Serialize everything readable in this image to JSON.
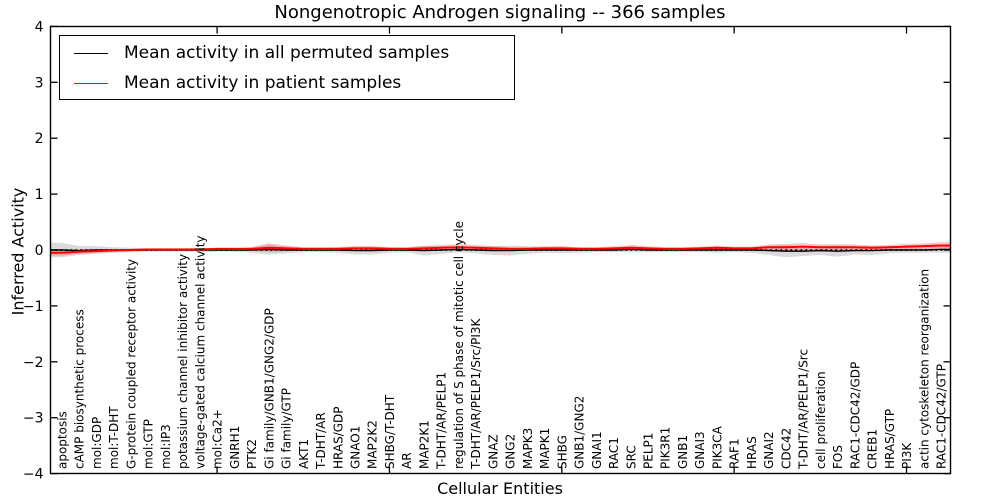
{
  "figure": {
    "background": "#ffffff",
    "frame_color": "#000000"
  },
  "chart_data": {
    "type": "line",
    "title": "Nongenotropic Androgen signaling -- 366 samples",
    "xlabel": "Cellular Entities",
    "ylabel": "Inferred Activity",
    "ylim": [
      -4,
      4
    ],
    "ytick_values": [
      4,
      3,
      2,
      1,
      0,
      -1,
      -2,
      -3,
      -4
    ],
    "ytick_labels": [
      "4",
      "3",
      "2",
      "1",
      "0",
      "−1",
      "−2",
      "−3",
      "−4"
    ],
    "xtick_values": [
      10,
      20,
      30,
      40,
      50
    ],
    "grid": false,
    "zero_line": {
      "value": 0,
      "style": "dotted",
      "color": "#000000"
    },
    "legend": {
      "position": "upper left",
      "entries": [
        {
          "label": "Mean activity in all permuted samples",
          "color": "#000000"
        },
        {
          "label": "Mean activity in patient samples",
          "color": "#ff0000"
        }
      ]
    },
    "categories": [
      "apoptosis",
      "cAMP biosynthetic process",
      "mol:GDP",
      "mol:T-DHT",
      "G-protein coupled receptor activity",
      "mol:GTP",
      "mol:IP3",
      "potassium channel inhibitor activity",
      "voltage-gated calcium channel activity",
      "mol:Ca2+",
      "GNRH1",
      "PTK2",
      "Gi family/GNB1/GNG2/GDP",
      "Gi family/GTP",
      "AKT1",
      "T-DHT/AR",
      "HRAS/GDP",
      "GNAO1",
      "MAP2K2",
      "SHBG/T-DHT",
      "AR",
      "MAP2K1",
      "T-DHT/AR/PELP1",
      "regulation of S phase of mitotic cell cycle",
      "T-DHT/AR/PELP1/Src/PI3K",
      "GNAZ",
      "GNG2",
      "MAPK3",
      "MAPK1",
      "SHBG",
      "GNB1/GNG2",
      "GNAI1",
      "RAC1",
      "SRC",
      "PELP1",
      "PIK3R1",
      "GNB1",
      "GNAI3",
      "PIK3CA",
      "RAF1",
      "HRAS",
      "GNAI2",
      "CDC42",
      "T-DHT/AR/PELP1/Src",
      "cell proliferation",
      "FOS",
      "RAC1-CDC42/GDP",
      "CREB1",
      "HRAS/GTP",
      "PI3K",
      "actin cytoskeleton reorganization",
      "RAC1-CDC42/GTP"
    ],
    "series": [
      {
        "name": "Mean activity in all permuted samples",
        "color": "#000000",
        "band_color": "#999999",
        "band_opacity": 0.35,
        "values": [
          0.0,
          -0.01,
          0.0,
          0.0,
          0.0,
          0.0,
          0.0,
          0.0,
          0.0,
          0.0,
          0.0,
          0.0,
          0.01,
          0.0,
          0.0,
          0.0,
          0.0,
          -0.01,
          -0.01,
          0.0,
          0.0,
          -0.01,
          0.0,
          0.01,
          0.0,
          -0.01,
          -0.01,
          0.0,
          0.0,
          0.0,
          0.0,
          0.0,
          0.0,
          0.01,
          0.0,
          0.0,
          0.0,
          0.0,
          0.0,
          0.0,
          0.0,
          -0.01,
          -0.02,
          -0.02,
          -0.01,
          -0.02,
          -0.01,
          -0.01,
          0.0,
          0.0,
          0.0,
          0.01
        ],
        "band_halfwidth": [
          0.13,
          0.08,
          0.07,
          0.05,
          0.04,
          0.03,
          0.03,
          0.03,
          0.04,
          0.03,
          0.03,
          0.05,
          0.09,
          0.06,
          0.04,
          0.04,
          0.05,
          0.07,
          0.07,
          0.05,
          0.04,
          0.09,
          0.07,
          0.05,
          0.06,
          0.08,
          0.09,
          0.07,
          0.05,
          0.06,
          0.05,
          0.04,
          0.04,
          0.05,
          0.04,
          0.04,
          0.04,
          0.04,
          0.05,
          0.04,
          0.05,
          0.08,
          0.11,
          0.09,
          0.08,
          0.1,
          0.07,
          0.08,
          0.06,
          0.05,
          0.05,
          0.06
        ]
      },
      {
        "name": "Mean activity in patient samples",
        "color": "#ff0000",
        "band_color": "#ff0000",
        "band_opacity": 0.22,
        "values": [
          -0.05,
          -0.03,
          -0.02,
          -0.01,
          0.0,
          0.01,
          0.01,
          0.01,
          0.01,
          0.02,
          0.02,
          0.02,
          0.04,
          0.03,
          0.02,
          0.02,
          0.02,
          0.03,
          0.03,
          0.02,
          0.02,
          0.03,
          0.04,
          0.05,
          0.04,
          0.03,
          0.02,
          0.02,
          0.03,
          0.03,
          0.02,
          0.02,
          0.03,
          0.04,
          0.03,
          0.02,
          0.02,
          0.03,
          0.04,
          0.03,
          0.03,
          0.05,
          0.05,
          0.06,
          0.05,
          0.05,
          0.05,
          0.04,
          0.05,
          0.06,
          0.07,
          0.08
        ],
        "band_halfwidth": [
          0.05,
          0.04,
          0.03,
          0.02,
          0.02,
          0.02,
          0.02,
          0.02,
          0.02,
          0.02,
          0.02,
          0.03,
          0.08,
          0.05,
          0.03,
          0.03,
          0.03,
          0.04,
          0.04,
          0.03,
          0.03,
          0.04,
          0.05,
          0.06,
          0.05,
          0.04,
          0.03,
          0.03,
          0.04,
          0.04,
          0.03,
          0.03,
          0.04,
          0.05,
          0.04,
          0.03,
          0.03,
          0.03,
          0.04,
          0.03,
          0.03,
          0.05,
          0.06,
          0.06,
          0.05,
          0.05,
          0.05,
          0.04,
          0.04,
          0.05,
          0.05,
          0.06
        ]
      }
    ]
  }
}
